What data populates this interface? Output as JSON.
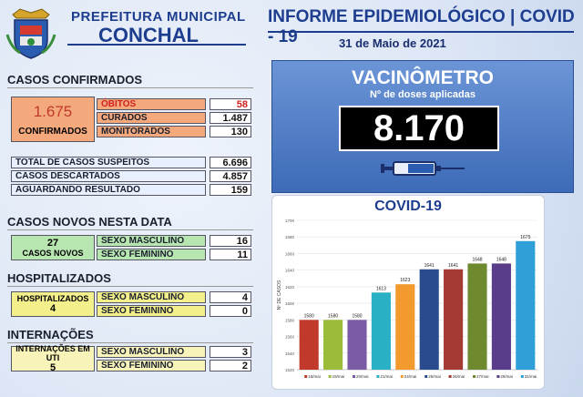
{
  "header": {
    "line1": "PREFEITURA MUNICIPAL",
    "line2": "CONCHAL",
    "report_title": "INFORME EPIDEMIOLÓGICO | COVID - 19",
    "date": "31 de Maio de 2021"
  },
  "confirmed": {
    "section": "CASOS CONFIRMADOS",
    "count": "1.675",
    "label": "CONFIRMADOS",
    "rows": [
      {
        "label": "ÓBITOS",
        "value": "58"
      },
      {
        "label": "CURADOS",
        "value": "1.487"
      },
      {
        "label": "MONITORADOS",
        "value": "130"
      }
    ]
  },
  "suspects": {
    "rows": [
      {
        "label": "TOTAL DE CASOS SUSPEITOS",
        "value": "6.696"
      },
      {
        "label": "CASOS DESCARTADOS",
        "value": "4.857"
      },
      {
        "label": "AGUARDANDO RESULTADO",
        "value": "159"
      }
    ]
  },
  "new_cases": {
    "section": "CASOS NOVOS NESTA DATA",
    "count": "27",
    "label": "CASOS NOVOS",
    "rows": [
      {
        "label": "SEXO MASCULINO",
        "value": "16"
      },
      {
        "label": "SEXO FEMININO",
        "value": "11"
      }
    ]
  },
  "hospitalized": {
    "section": "HOSPITALIZADOS",
    "label": "HOSPITALIZADOS",
    "count": "4",
    "rows": [
      {
        "label": "SEXO MASCULINO",
        "value": "4"
      },
      {
        "label": "SEXO FEMININO",
        "value": "0"
      }
    ]
  },
  "icu": {
    "section": "INTERNAÇÕES",
    "label": "INTERNAÇÕES EM UTI",
    "count": "5",
    "rows": [
      {
        "label": "SEXO MASCULINO",
        "value": "3"
      },
      {
        "label": "SEXO FEMININO",
        "value": "2"
      }
    ]
  },
  "vaccine": {
    "title": "VACINÔMETRO",
    "subtitle": "Nº de doses aplicadas",
    "value": "8.170"
  },
  "chart_data": {
    "type": "bar",
    "title": "COVID-19",
    "ylabel": "Nº DE CASOS",
    "categories": [
      "18/mai",
      "19/mai",
      "20/mai",
      "21/mai",
      "24/mai",
      "25/mai",
      "26/mai",
      "27/mai",
      "28/mai",
      "31/mai"
    ],
    "values": [
      1580,
      1580,
      1580,
      1613,
      1623,
      1641,
      1641,
      1648,
      1648,
      1675
    ],
    "colors": [
      "#c0392b",
      "#9bbb3b",
      "#7b5aa6",
      "#2ab0c5",
      "#f39a2e",
      "#2b4c8c",
      "#a33a33",
      "#6f8a2e",
      "#5a3d8a",
      "#2f9fd8"
    ],
    "ylim": [
      1520,
      1700
    ],
    "yticks": [
      1520,
      1540,
      1560,
      1580,
      1600,
      1620,
      1640,
      1660,
      1680,
      1700
    ],
    "grid": true
  }
}
